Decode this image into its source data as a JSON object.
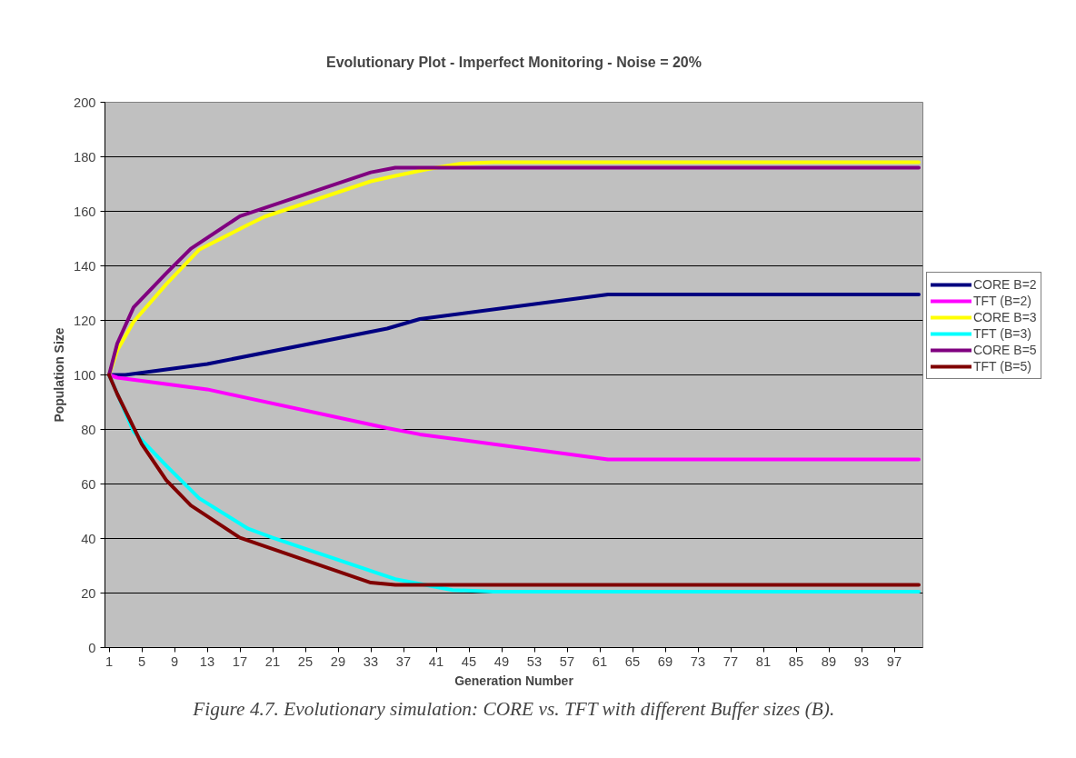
{
  "chart_data": {
    "type": "line",
    "title": "Evolutionary Plot - Imperfect Monitoring - Noise = 20%",
    "xlabel": "Generation Number",
    "ylabel": "Population Size",
    "xlim": [
      0.5,
      100.5
    ],
    "xticks": [
      1,
      5,
      9,
      13,
      17,
      21,
      25,
      29,
      33,
      37,
      41,
      45,
      49,
      53,
      57,
      61,
      65,
      69,
      73,
      77,
      81,
      85,
      89,
      93,
      97
    ],
    "ylim": [
      0,
      200
    ],
    "yticks": [
      0,
      20,
      40,
      60,
      80,
      100,
      120,
      140,
      160,
      180,
      200
    ],
    "grid": "y",
    "legend": "right",
    "line_style": "solid",
    "series": [
      {
        "name": "CORE B=2",
        "color": "#000080",
        "x": [
          1,
          3,
          13,
          35,
          39,
          62,
          100
        ],
        "values": [
          100,
          100,
          104,
          117,
          120.5,
          129.5,
          129.5
        ]
      },
      {
        "name": "TFT (B=2)",
        "color": "#ff00ff",
        "x": [
          1,
          2,
          13,
          35,
          39,
          62,
          100
        ],
        "values": [
          100,
          99,
          94.7,
          80.5,
          78.2,
          69,
          69
        ]
      },
      {
        "name": "CORE B=3",
        "color": "#ffff00",
        "x": [
          1,
          2,
          4,
          8,
          12,
          18,
          20,
          33,
          36,
          40,
          44,
          48,
          100
        ],
        "values": [
          100,
          109,
          119.5,
          133.3,
          145.9,
          155.1,
          158,
          171,
          173,
          175.5,
          177.5,
          178,
          178
        ]
      },
      {
        "name": "TFT (B=3)",
        "color": "#00ffff",
        "x": [
          1,
          4,
          8,
          12,
          18,
          21,
          34,
          36,
          43,
          48,
          100
        ],
        "values": [
          100,
          79.2,
          66.7,
          54.8,
          43.6,
          40.3,
          27.1,
          25.1,
          21.1,
          20.5,
          20.5
        ]
      },
      {
        "name": "CORE B=5",
        "color": "#800080",
        "x": [
          1,
          2,
          4,
          8,
          11,
          17,
          33,
          36,
          100
        ],
        "values": [
          100,
          111.5,
          124.8,
          137.3,
          146.3,
          158.2,
          174.3,
          176,
          176
        ]
      },
      {
        "name": "TFT (B=5)",
        "color": "#800000",
        "x": [
          1,
          2,
          5,
          8,
          11,
          17,
          33,
          36,
          100
        ],
        "values": [
          100,
          93,
          74.6,
          61.4,
          52.1,
          40.3,
          23.8,
          23,
          23
        ]
      }
    ],
    "annotations": [
      "Figure 4.7. Evolutionary simulation: CORE vs. TFT with different Buffer sizes (B)."
    ]
  }
}
